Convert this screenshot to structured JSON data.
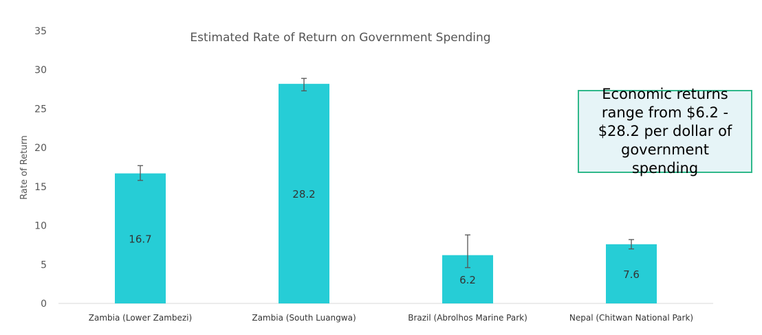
{
  "chart_data": {
    "type": "bar",
    "title": "Estimated Rate of Return on Government Spending",
    "xlabel": "",
    "ylabel": "Rate of Return",
    "ylim": [
      0,
      35
    ],
    "yticks": [
      0,
      5,
      10,
      15,
      20,
      25,
      30,
      35
    ],
    "categories": [
      "Zambia (Lower Zambezi)",
      "Zambia (South Luangwa)",
      "Brazil (Abrolhos Marine Park)",
      "Nepal (Chitwan National Park)"
    ],
    "values": [
      16.7,
      28.2,
      6.2,
      7.6
    ],
    "data_labels": [
      "16.7",
      "28.2",
      "6.2",
      "7.6"
    ],
    "error_low": [
      15.8,
      27.3,
      4.6,
      7.0
    ],
    "error_high": [
      17.7,
      28.9,
      8.8,
      8.2
    ],
    "bar_color": "#26cdd6",
    "grid": false,
    "legend": "none"
  },
  "callout": {
    "text": "Economic returns range from $6.2 - $28.2 per dollar of government spending",
    "border_color": "#2fb88a",
    "background_color": "#e6f4f7"
  }
}
